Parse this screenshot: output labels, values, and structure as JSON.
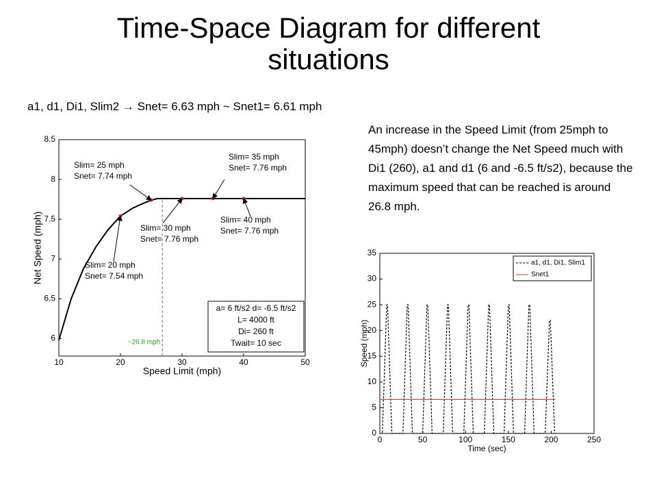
{
  "slide": {
    "title": "Time-Space Diagram for different situations",
    "subtitle": "a1, d1, Di1, Slim2 → Snet= 6.63 mph ~ Snet1= 6.61 mph",
    "note": "An increase in the Speed Limit (from 25mph to 45mph) doesn’t change the Net Speed much with Di1 (260), a1 and d1 (6 and -6.5 ft/s2), because the maximum speed that can be reached is around 26.8 mph."
  },
  "chart_data": [
    {
      "type": "line",
      "xlabel": "Speed Limit (mph)",
      "ylabel": "Net Speed (mph)",
      "xlim": [
        10,
        50
      ],
      "ylim": [
        5.78,
        8.5
      ],
      "xticks": [
        10,
        20,
        30,
        40,
        50
      ],
      "yticks": [
        6,
        6.5,
        7,
        7.5,
        8,
        8.5
      ],
      "series": [
        {
          "color": "#000000",
          "x": [
            10,
            12,
            14,
            16,
            18,
            20,
            22,
            24,
            25,
            26,
            30,
            35,
            40,
            45,
            50
          ],
          "values": [
            5.98,
            6.5,
            6.88,
            7.15,
            7.37,
            7.54,
            7.64,
            7.71,
            7.74,
            7.76,
            7.76,
            7.76,
            7.76,
            7.76,
            7.76
          ]
        },
        {
          "color": "#e02020",
          "x": [
            20,
            25,
            30,
            35,
            40
          ],
          "values": [
            7.54,
            7.74,
            7.76,
            7.76,
            7.76
          ]
        }
      ],
      "vline": {
        "x": 26.8,
        "label": "~26.8 mph",
        "color": "#2ca02c"
      },
      "annotations": [
        {
          "lines": [
            "Slim= 25 mph",
            "Snet= 7.74 mph"
          ]
        },
        {
          "lines": [
            "Slim= 35 mph",
            "Snet= 7.76 mph"
          ]
        },
        {
          "lines": [
            "Slim= 30 mph",
            "Snet= 7.76 mph"
          ]
        },
        {
          "lines": [
            "Slim= 40 mph",
            "Snet= 7.76 mph"
          ]
        },
        {
          "lines": [
            "Slim= 20 mph",
            "Snet= 7.54 mph"
          ]
        }
      ],
      "info_box": [
        "a= 6 ft/s2  d= -6.5 ft/s2",
        "L= 4000 ft",
        "Di= 260 ft",
        "Twait= 10 sec"
      ]
    },
    {
      "type": "line",
      "xlabel": "Time (sec)",
      "ylabel": "Speed (mph)",
      "xlim": [
        0,
        250
      ],
      "ylim": [
        0,
        35
      ],
      "xticks": [
        0,
        50,
        100,
        150,
        200,
        250
      ],
      "yticks": [
        0,
        5,
        10,
        15,
        20,
        25,
        30,
        35
      ],
      "legend": "upper right",
      "series": [
        {
          "name": "a1, d1, Di1, Slim1",
          "color": "#000000",
          "dash": true,
          "x": [
            0,
            3,
            8,
            9,
            14,
            27,
            32,
            33,
            38,
            50,
            55,
            56,
            61,
            74,
            79,
            80,
            85,
            98,
            103,
            104,
            109,
            122,
            127,
            128,
            133,
            145,
            150,
            151,
            156,
            169,
            174,
            175,
            180,
            193,
            198,
            199,
            204
          ],
          "values": [
            0,
            0,
            25,
            25,
            0,
            0,
            25,
            25,
            0,
            0,
            25,
            25,
            0,
            0,
            25,
            25,
            0,
            0,
            25,
            25,
            0,
            0,
            25,
            25,
            0,
            0,
            25,
            25,
            0,
            0,
            25,
            25,
            0,
            0,
            22,
            22,
            0
          ]
        },
        {
          "name": "Snet1",
          "color": "#c0392b",
          "x": [
            0,
            205
          ],
          "values": [
            6.61,
            6.61
          ]
        }
      ]
    }
  ]
}
